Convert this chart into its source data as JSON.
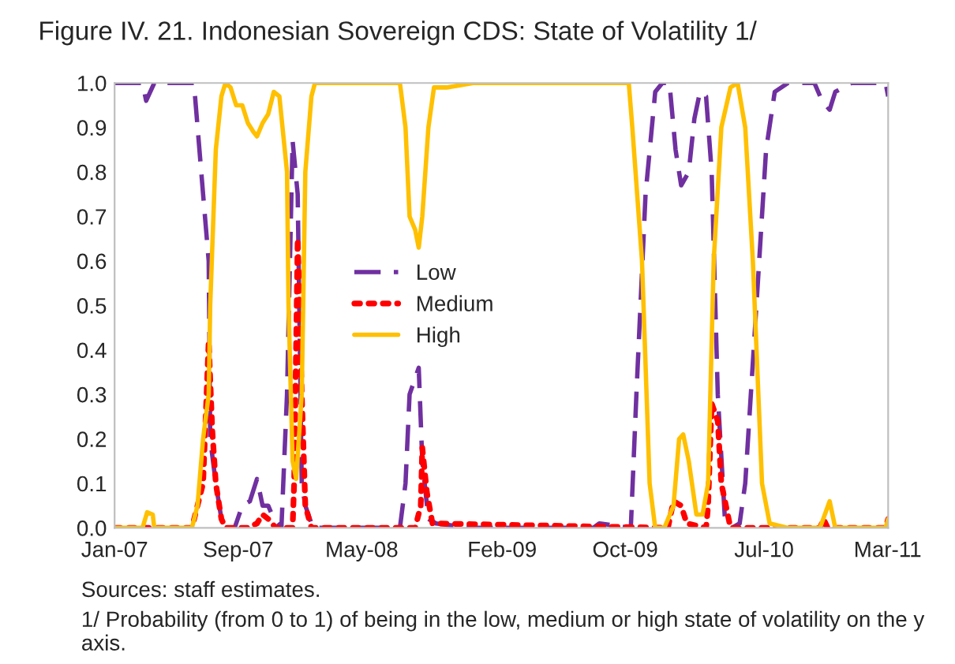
{
  "chart_data": {
    "type": "line",
    "title": "Figure IV. 21. Indonesian Sovereign CDS: State of Volatility 1/",
    "annotations": [
      "Sources: staff estimates.",
      "1/ Probability (from 0 to 1) of being in the low, medium or high state of volatility on the y axis."
    ],
    "xlim": [
      "2007-01-01",
      "2011-03-02"
    ],
    "xticks": [
      {
        "value": "2007-01-01",
        "label": "Jan-07"
      },
      {
        "value": "2007-09-01",
        "label": "Sep-07"
      },
      {
        "value": "2008-05-01",
        "label": "May-08"
      },
      {
        "value": "2009-02-01",
        "label": "Feb-09"
      },
      {
        "value": "2009-10-01",
        "label": "Oct-09"
      },
      {
        "value": "2010-07-01",
        "label": "Jul-10"
      },
      {
        "value": "2011-03-01",
        "label": "Mar-11"
      }
    ],
    "ylim": [
      0,
      1
    ],
    "yticks": [
      {
        "value": 0,
        "label": "0.0"
      },
      {
        "value": 0.1,
        "label": "0.1"
      },
      {
        "value": 0.2,
        "label": "0.2"
      },
      {
        "value": 0.3,
        "label": "0.3"
      },
      {
        "value": 0.4,
        "label": "0.4"
      },
      {
        "value": 0.5,
        "label": "0.5"
      },
      {
        "value": 0.6,
        "label": "0.6"
      },
      {
        "value": 0.7,
        "label": "0.7"
      },
      {
        "value": 0.8,
        "label": "0.8"
      },
      {
        "value": 0.9,
        "label": "0.9"
      },
      {
        "value": 1,
        "label": "1.0"
      }
    ],
    "grid": false,
    "legend": "center",
    "series": [
      {
        "name": "Low",
        "color": "#7030a0",
        "line_style": "dashed",
        "x": [
          "2007-01-01",
          "2007-02-25",
          "2007-03-04",
          "2007-03-20",
          "2007-06-06",
          "2007-06-24",
          "2007-07-05",
          "2007-07-08",
          "2007-07-19",
          "2007-07-30",
          "2007-08-07",
          "2007-08-25",
          "2007-09-09",
          "2007-09-24",
          "2007-10-08",
          "2007-10-19",
          "2007-10-30",
          "2007-11-10",
          "2007-11-25",
          "2007-12-06",
          "2007-12-17",
          "2007-12-27",
          "2008-01-04",
          "2008-01-11",
          "2008-01-26",
          "2008-07-15",
          "2008-07-26",
          "2008-08-03",
          "2008-08-21",
          "2008-08-28",
          "2008-09-09",
          "2008-09-24",
          "2008-12-06",
          "2009-07-30",
          "2009-08-11",
          "2009-10-12",
          "2009-10-23",
          "2009-11-10",
          "2009-11-29",
          "2009-12-13",
          "2009-12-27",
          "2010-01-08",
          "2010-01-19",
          "2010-02-03",
          "2010-02-14",
          "2010-02-25",
          "2010-03-09",
          "2010-03-20",
          "2010-04-01",
          "2010-04-15",
          "2010-04-29",
          "2010-05-14",
          "2010-05-25",
          "2010-06-16",
          "2010-07-05",
          "2010-07-22",
          "2010-08-17",
          "2010-10-08",
          "2010-10-23",
          "2010-11-07",
          "2010-11-18",
          "2010-12-20",
          "2011-01-30",
          "2011-02-25",
          "2011-03-02"
        ],
        "values": [
          1.0,
          1.0,
          0.96,
          1.0,
          1.0,
          0.75,
          0.6,
          0.2,
          0.1,
          0.02,
          0.0,
          0.0,
          0.05,
          0.06,
          0.11,
          0.05,
          0.05,
          0.02,
          0.0,
          0.3,
          0.87,
          0.75,
          0.1,
          0.05,
          0.0,
          0.0,
          0.1,
          0.3,
          0.36,
          0.15,
          0.02,
          0.01,
          0.0,
          0.0,
          0.01,
          0.0,
          0.3,
          0.75,
          0.98,
          1.0,
          1.0,
          0.85,
          0.77,
          0.8,
          0.92,
          0.98,
          0.97,
          0.8,
          0.3,
          0.02,
          0.0,
          0.01,
          0.1,
          0.5,
          0.85,
          0.98,
          1.0,
          1.0,
          0.96,
          0.94,
          0.98,
          1.0,
          1.0,
          1.0,
          0.97
        ]
      },
      {
        "name": "Medium",
        "color": "#ff0000",
        "line_style": "dotted",
        "x": [
          "2007-01-01",
          "2007-06-02",
          "2007-06-13",
          "2007-06-24",
          "2007-07-05",
          "2007-07-12",
          "2007-07-19",
          "2007-07-30",
          "2007-08-07",
          "2007-09-20",
          "2007-10-08",
          "2007-10-19",
          "2007-10-30",
          "2007-11-14",
          "2007-12-17",
          "2007-12-20",
          "2007-12-27",
          "2008-01-04",
          "2008-01-11",
          "2008-01-23",
          "2008-08-14",
          "2008-08-25",
          "2008-08-28",
          "2008-09-06",
          "2008-09-17",
          "2009-12-24",
          "2010-01-04",
          "2010-01-19",
          "2010-01-30",
          "2010-03-09",
          "2010-03-13",
          "2010-03-20",
          "2010-04-01",
          "2010-04-08",
          "2010-04-26",
          "2010-10-19",
          "2010-10-26",
          "2010-11-03",
          "2011-02-25",
          "2011-03-02"
        ],
        "values": [
          0.0,
          0.0,
          0.05,
          0.1,
          0.42,
          0.22,
          0.1,
          0.02,
          0.0,
          0.0,
          0.01,
          0.03,
          0.02,
          0.0,
          0.0,
          0.1,
          0.65,
          0.3,
          0.05,
          0.0,
          0.0,
          0.05,
          0.18,
          0.08,
          0.01,
          0.0,
          0.06,
          0.05,
          0.01,
          0.0,
          0.05,
          0.28,
          0.24,
          0.1,
          0.0,
          0.0,
          0.02,
          0.0,
          0.0,
          0.02
        ]
      },
      {
        "name": "High",
        "color": "#ffc000",
        "line_style": "solid",
        "x": [
          "2007-01-01",
          "2007-02-25",
          "2007-03-06",
          "2007-03-17",
          "2007-03-20",
          "2007-06-02",
          "2007-06-13",
          "2007-06-24",
          "2007-07-05",
          "2007-07-08",
          "2007-07-19",
          "2007-07-30",
          "2007-08-07",
          "2007-08-17",
          "2007-08-28",
          "2007-09-09",
          "2007-09-20",
          "2007-10-01",
          "2007-10-08",
          "2007-10-19",
          "2007-10-30",
          "2007-11-10",
          "2007-11-21",
          "2007-12-06",
          "2007-12-09",
          "2007-12-17",
          "2007-12-24",
          "2008-01-04",
          "2008-01-11",
          "2008-01-23",
          "2008-01-30",
          "2008-07-15",
          "2008-07-26",
          "2008-08-03",
          "2008-08-14",
          "2008-08-21",
          "2008-08-28",
          "2008-09-09",
          "2008-09-20",
          "2008-10-15",
          "2008-12-06",
          "2009-02-07",
          "2009-07-30",
          "2009-10-08",
          "2009-10-15",
          "2009-11-03",
          "2009-11-18",
          "2009-11-29",
          "2009-12-17",
          "2010-01-04",
          "2010-01-15",
          "2010-01-23",
          "2010-02-03",
          "2010-02-18",
          "2010-03-02",
          "2010-03-13",
          "2010-03-24",
          "2010-04-08",
          "2010-04-26",
          "2010-05-10",
          "2010-05-25",
          "2010-06-09",
          "2010-06-27",
          "2010-07-12",
          "2010-08-17",
          "2010-10-19",
          "2010-11-07",
          "2010-11-18",
          "2011-02-25",
          "2011-03-02"
        ],
        "values": [
          0.0,
          0.0,
          0.035,
          0.03,
          0.0,
          0.0,
          0.05,
          0.2,
          0.3,
          0.5,
          0.85,
          0.97,
          1.0,
          0.99,
          0.95,
          0.95,
          0.91,
          0.89,
          0.88,
          0.91,
          0.93,
          0.98,
          0.97,
          0.8,
          0.5,
          0.15,
          0.11,
          0.3,
          0.8,
          0.97,
          1.0,
          1.0,
          0.9,
          0.7,
          0.67,
          0.63,
          0.7,
          0.9,
          0.99,
          0.99,
          1.0,
          1.0,
          1.0,
          1.0,
          0.9,
          0.6,
          0.1,
          0.0,
          0.0,
          0.05,
          0.2,
          0.21,
          0.15,
          0.03,
          0.03,
          0.1,
          0.6,
          0.9,
          0.99,
          1.0,
          0.9,
          0.6,
          0.1,
          0.01,
          0.0,
          0.0,
          0.06,
          0.0,
          0.0,
          0.02
        ]
      }
    ]
  }
}
